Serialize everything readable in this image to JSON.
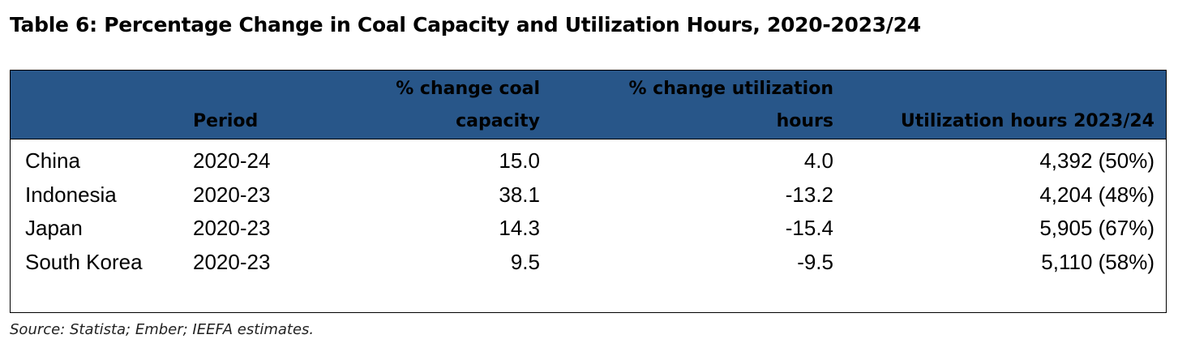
{
  "title": "Table 6: Percentage Change in Coal Capacity and Utilization Hours, 2020-2023/24",
  "columns": {
    "period": "Period",
    "capacity_l1": "% change coal",
    "capacity_l2": "capacity",
    "util_l1": "% change utilization",
    "util_l2": "hours",
    "hours": "Utilization hours 2023/24"
  },
  "rows": [
    {
      "country": "China",
      "period": "2020-24",
      "capacity": "15.0",
      "util": "4.0",
      "hours": "4,392 (50%)"
    },
    {
      "country": "Indonesia",
      "period": "2020-23",
      "capacity": "38.1",
      "util": "-13.2",
      "hours": "4,204 (48%)"
    },
    {
      "country": "Japan",
      "period": "2020-23",
      "capacity": "14.3",
      "util": "-15.4",
      "hours": "5,905 (67%)"
    },
    {
      "country": "South Korea",
      "period": "2020-23",
      "capacity": "9.5",
      "util": "-9.5",
      "hours": "5,110 (58%)"
    }
  ],
  "source": "Source: Statista; Ember; IEEFA estimates.",
  "colors": {
    "header": "#285689"
  }
}
